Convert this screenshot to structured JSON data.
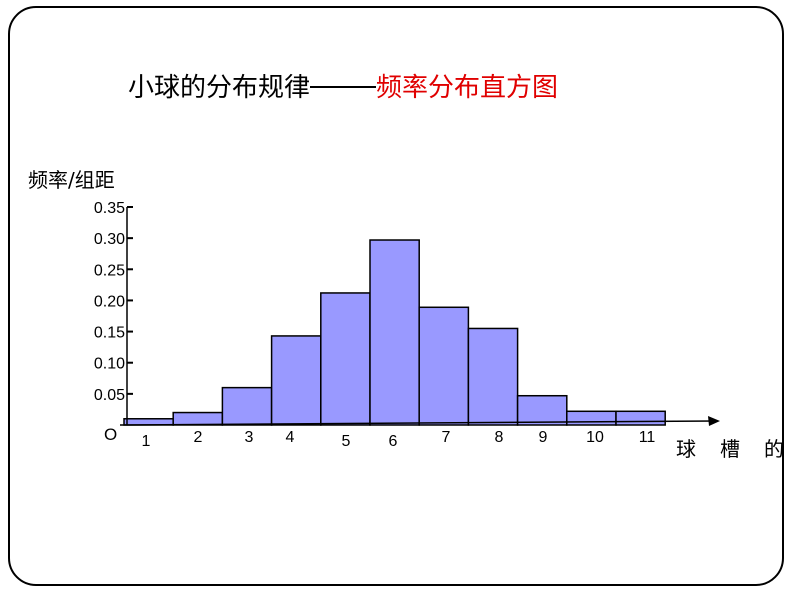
{
  "title": {
    "part1": "小球的分布规律",
    "part2": "频率分布直方图"
  },
  "colors": {
    "bar_fill": "#9999ff",
    "bar_stroke": "#000000",
    "title_accent": "#e00000"
  },
  "chart_data": {
    "type": "bar",
    "title": "频率分布直方图",
    "ylabel": "频率/组距",
    "xlabel": "球槽的",
    "origin_label": "O",
    "categories": [
      "1",
      "2",
      "3",
      "4",
      "5",
      "6",
      "7",
      "8",
      "9",
      "10",
      "11"
    ],
    "values": [
      0.01,
      0.02,
      0.06,
      0.143,
      0.212,
      0.297,
      0.189,
      0.155,
      0.047,
      0.022,
      0.022
    ],
    "yticks": [
      "0.05",
      "0.10",
      "0.15",
      "0.20",
      "0.25",
      "0.30",
      "0.35"
    ],
    "ylim": [
      0,
      0.35
    ],
    "grid": false,
    "legend": "none"
  }
}
